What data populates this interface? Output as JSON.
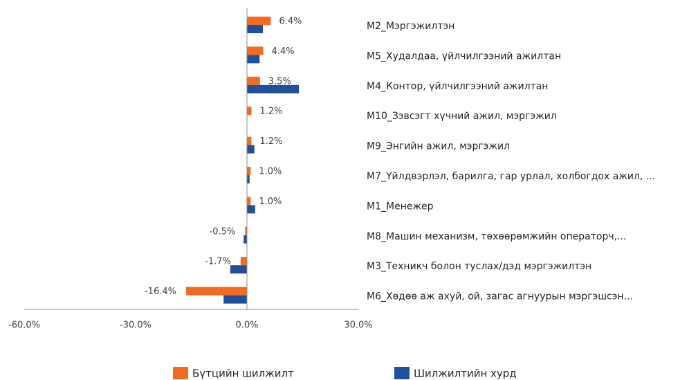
{
  "chart_data": {
    "type": "bar",
    "orientation": "horizontal",
    "categories": [
      "M2_Мэргэжилтэн",
      "M5_Худалдаа, үйлчилгээний ажилтан",
      "M4_Контор, үйлчилгээний ажилтан",
      "M10_Зэвсэгт хүчний ажил, мэргэжил",
      "M9_Энгийн ажил, мэргэжил",
      "M7_Үйлдвэрлэл, барилга, гар урлал, холбогдох ажил, ...",
      "M1_Менежер",
      "M8_Машин механизм, төхөөрөмжийн операторч,...",
      "M3_Техникч болон туслах/дэд мэргэжилтэн",
      "M6_Хөдөө аж ахуй, ой, загас агнуурын мэргэшсэн..."
    ],
    "series": [
      {
        "name": "Бүтцийн шилжилт",
        "color": "#f26b21",
        "values": [
          6.4,
          4.4,
          3.5,
          1.2,
          1.2,
          1.0,
          1.0,
          -0.5,
          -1.7,
          -16.4
        ],
        "value_labels": [
          "6.4%",
          "4.4%",
          "3.5%",
          "1.2%",
          "1.2%",
          "1.0%",
          "1.0%",
          "-0.5%",
          "-1.7%",
          "-16.4%"
        ]
      },
      {
        "name": "Шилжилтийн хурд",
        "color": "#21509a",
        "values": [
          4.3,
          3.4,
          14.0,
          0,
          2.0,
          0.7,
          2.2,
          -0.9,
          -4.5,
          -6.3
        ]
      }
    ],
    "xlim": [
      -60,
      30
    ],
    "xticks": [
      {
        "value": -60,
        "label": "-60.0%"
      },
      {
        "value": -30,
        "label": "-30.0%"
      },
      {
        "value": 0,
        "label": "0.0%"
      },
      {
        "value": 30,
        "label": "30.0%"
      }
    ]
  }
}
